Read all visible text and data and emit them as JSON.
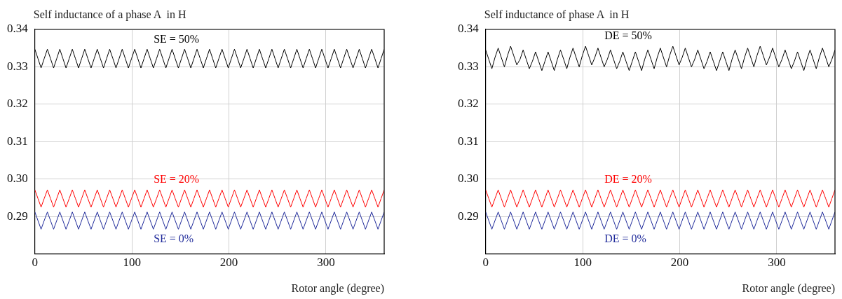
{
  "chart_data": [
    {
      "type": "line",
      "ylabel": "Self inductance of a phase A  in H",
      "xlabel": "Rotor angle (degree)",
      "xlim": [
        0,
        360
      ],
      "xticks": [
        0,
        100,
        200,
        300
      ],
      "ylim": [
        0.28,
        0.34
      ],
      "yticks": [
        0.29,
        {
          "value": 0.3,
          "label": "0.30"
        },
        0.31,
        0.32,
        0.33,
        0.34
      ],
      "grid": true,
      "legend": false,
      "marker": "none",
      "line_style": "solid",
      "x": [
        0,
        3.2,
        6.4,
        9.6,
        12.9,
        16.1,
        19.3,
        22.5,
        25.7,
        28.9,
        32.1,
        35.4,
        38.6,
        41.8,
        45,
        48.2,
        51.4,
        54.6,
        57.9,
        61.1,
        64.3,
        67.5,
        70.7,
        73.9,
        77.1,
        80.4,
        83.6,
        86.8,
        90,
        93.2,
        96.4,
        99.6,
        102.9,
        106.1,
        109.3,
        112.5,
        115.7,
        118.9,
        122.1,
        125.4,
        128.6,
        131.8,
        135,
        138.2,
        141.4,
        144.6,
        147.9,
        151.1,
        154.3,
        157.5,
        160.7,
        163.9,
        167.1,
        170.4,
        173.6,
        176.8,
        180,
        183.2,
        186.4,
        189.6,
        192.9,
        196.1,
        199.3,
        202.5,
        205.7,
        208.9,
        212.1,
        215.4,
        218.6,
        221.8,
        225,
        228.2,
        231.4,
        234.6,
        237.9,
        241.1,
        244.3,
        247.5,
        250.7,
        253.9,
        257.1,
        260.4,
        263.6,
        266.8,
        270,
        273.2,
        276.4,
        279.6,
        282.9,
        286.1,
        289.3,
        292.5,
        295.7,
        298.9,
        302.1,
        305.4,
        308.6,
        311.8,
        315,
        318.2,
        321.4,
        324.6,
        327.9,
        331.1,
        334.3,
        337.5,
        340.7,
        343.9,
        347.1,
        350.4,
        353.6,
        356.8,
        360
      ],
      "series": [
        {
          "name": "SE = 50%",
          "color": "#000000",
          "values": [
            0.3347,
            0.3322,
            0.3297,
            0.3322,
            0.3347,
            0.3322,
            0.3297,
            0.3322,
            0.3347,
            0.3322,
            0.3297,
            0.3322,
            0.3347,
            0.3322,
            0.3297,
            0.3322,
            0.3347,
            0.3322,
            0.3297,
            0.3322,
            0.3347,
            0.3322,
            0.3297,
            0.3322,
            0.3347,
            0.3322,
            0.3297,
            0.3322,
            0.3347,
            0.3322,
            0.3297,
            0.3322,
            0.3347,
            0.3322,
            0.3297,
            0.3322,
            0.3347,
            0.3322,
            0.3297,
            0.3322,
            0.3347,
            0.3322,
            0.3297,
            0.3322,
            0.3347,
            0.3322,
            0.3297,
            0.3322,
            0.3347,
            0.3322,
            0.3297,
            0.3322,
            0.3347,
            0.3322,
            0.3297,
            0.3322,
            0.3347,
            0.3322,
            0.3297,
            0.3322,
            0.3347,
            0.3322,
            0.3297,
            0.3322,
            0.3347,
            0.3322,
            0.3297,
            0.3322,
            0.3347,
            0.3322,
            0.3297,
            0.3322,
            0.3347,
            0.3322,
            0.3297,
            0.3322,
            0.3347,
            0.3322,
            0.3297,
            0.3322,
            0.3347,
            0.3322,
            0.3297,
            0.3322,
            0.3347,
            0.3322,
            0.3297,
            0.3322,
            0.3347,
            0.3322,
            0.3297,
            0.3322,
            0.3347,
            0.3322,
            0.3297,
            0.3322,
            0.3347,
            0.3322,
            0.3297,
            0.3322,
            0.3347,
            0.3322,
            0.3297,
            0.3322,
            0.3347,
            0.3322,
            0.3297,
            0.3322,
            0.3347,
            0.3322,
            0.3297,
            0.3322,
            0.3347
          ]
        },
        {
          "name": "SE = 20%",
          "color": "#ff0000",
          "values": [
            0.2971,
            0.2948,
            0.2925,
            0.2948,
            0.2971,
            0.2948,
            0.2925,
            0.2948,
            0.2971,
            0.2948,
            0.2925,
            0.2948,
            0.2971,
            0.2948,
            0.2925,
            0.2948,
            0.2971,
            0.2948,
            0.2925,
            0.2948,
            0.2971,
            0.2948,
            0.2925,
            0.2948,
            0.2971,
            0.2948,
            0.2925,
            0.2948,
            0.2971,
            0.2948,
            0.2925,
            0.2948,
            0.2971,
            0.2948,
            0.2925,
            0.2948,
            0.2971,
            0.2948,
            0.2925,
            0.2948,
            0.2971,
            0.2948,
            0.2925,
            0.2948,
            0.2971,
            0.2948,
            0.2925,
            0.2948,
            0.2971,
            0.2948,
            0.2925,
            0.2948,
            0.2971,
            0.2948,
            0.2925,
            0.2948,
            0.2971,
            0.2948,
            0.2925,
            0.2948,
            0.2971,
            0.2948,
            0.2925,
            0.2948,
            0.2971,
            0.2948,
            0.2925,
            0.2948,
            0.2971,
            0.2948,
            0.2925,
            0.2948,
            0.2971,
            0.2948,
            0.2925,
            0.2948,
            0.2971,
            0.2948,
            0.2925,
            0.2948,
            0.2971,
            0.2948,
            0.2925,
            0.2948,
            0.2971,
            0.2948,
            0.2925,
            0.2948,
            0.2971,
            0.2948,
            0.2925,
            0.2948,
            0.2971,
            0.2948,
            0.2925,
            0.2948,
            0.2971,
            0.2948,
            0.2925,
            0.2948,
            0.2971,
            0.2948,
            0.2925,
            0.2948,
            0.2971,
            0.2948,
            0.2925,
            0.2948,
            0.2971,
            0.2948,
            0.2925,
            0.2948,
            0.2971
          ]
        },
        {
          "name": "SE = 0%",
          "color": "#1f2a9a",
          "values": [
            0.2912,
            0.2889,
            0.2866,
            0.2889,
            0.2912,
            0.2889,
            0.2866,
            0.2889,
            0.2912,
            0.2889,
            0.2866,
            0.2889,
            0.2912,
            0.2889,
            0.2866,
            0.2889,
            0.2912,
            0.2889,
            0.2866,
            0.2889,
            0.2912,
            0.2889,
            0.2866,
            0.2889,
            0.2912,
            0.2889,
            0.2866,
            0.2889,
            0.2912,
            0.2889,
            0.2866,
            0.2889,
            0.2912,
            0.2889,
            0.2866,
            0.2889,
            0.2912,
            0.2889,
            0.2866,
            0.2889,
            0.2912,
            0.2889,
            0.2866,
            0.2889,
            0.2912,
            0.2889,
            0.2866,
            0.2889,
            0.2912,
            0.2889,
            0.2866,
            0.2889,
            0.2912,
            0.2889,
            0.2866,
            0.2889,
            0.2912,
            0.2889,
            0.2866,
            0.2889,
            0.2912,
            0.2889,
            0.2866,
            0.2889,
            0.2912,
            0.2889,
            0.2866,
            0.2889,
            0.2912,
            0.2889,
            0.2866,
            0.2889,
            0.2912,
            0.2889,
            0.2866,
            0.2889,
            0.2912,
            0.2889,
            0.2866,
            0.2889,
            0.2912,
            0.2889,
            0.2866,
            0.2889,
            0.2912,
            0.2889,
            0.2866,
            0.2889,
            0.2912,
            0.2889,
            0.2866,
            0.2889,
            0.2912,
            0.2889,
            0.2866,
            0.2889,
            0.2912,
            0.2889,
            0.2866,
            0.2889,
            0.2912,
            0.2889,
            0.2866,
            0.2889,
            0.2912,
            0.2889,
            0.2866,
            0.2889,
            0.2912,
            0.2889,
            0.2866,
            0.2889,
            0.2912
          ]
        }
      ]
    },
    {
      "type": "line",
      "ylabel": "Self inductance of phase A  in H",
      "xlabel": "Rotor angle (degree)",
      "xlim": [
        0,
        360
      ],
      "xticks": [
        0,
        100,
        200,
        300
      ],
      "ylim": [
        0.28,
        0.34
      ],
      "yticks": [
        0.29,
        {
          "value": 0.3,
          "label": "0.30"
        },
        0.31,
        0.32,
        0.33,
        0.34
      ],
      "grid": true,
      "legend": false,
      "marker": "none",
      "line_style": "solid",
      "x": [
        0,
        3.2,
        6.4,
        9.6,
        12.9,
        16.1,
        19.3,
        22.5,
        25.7,
        28.9,
        32.1,
        35.4,
        38.6,
        41.8,
        45,
        48.2,
        51.4,
        54.6,
        57.9,
        61.1,
        64.3,
        67.5,
        70.7,
        73.9,
        77.1,
        80.4,
        83.6,
        86.8,
        90,
        93.2,
        96.4,
        99.6,
        102.9,
        106.1,
        109.3,
        112.5,
        115.7,
        118.9,
        122.1,
        125.4,
        128.6,
        131.8,
        135,
        138.2,
        141.4,
        144.6,
        147.9,
        151.1,
        154.3,
        157.5,
        160.7,
        163.9,
        167.1,
        170.4,
        173.6,
        176.8,
        180,
        183.2,
        186.4,
        189.6,
        192.9,
        196.1,
        199.3,
        202.5,
        205.7,
        208.9,
        212.1,
        215.4,
        218.6,
        221.8,
        225,
        228.2,
        231.4,
        234.6,
        237.9,
        241.1,
        244.3,
        247.5,
        250.7,
        253.9,
        257.1,
        260.4,
        263.6,
        266.8,
        270,
        273.2,
        276.4,
        279.6,
        282.9,
        286.1,
        289.3,
        292.5,
        295.7,
        298.9,
        302.1,
        305.4,
        308.6,
        311.8,
        315,
        318.2,
        321.4,
        324.6,
        327.9,
        331.1,
        334.3,
        337.5,
        340.7,
        343.9,
        347.1,
        350.4,
        353.6,
        356.8,
        360
      ],
      "series": [
        {
          "name": "DE = 50%",
          "color": "#000000",
          "values": [
            0.3345,
            0.332,
            0.3295,
            0.3325,
            0.335,
            0.3325,
            0.33,
            0.333,
            0.3355,
            0.333,
            0.3305,
            0.332,
            0.3345,
            0.332,
            0.3295,
            0.3315,
            0.334,
            0.3315,
            0.329,
            0.3315,
            0.334,
            0.3315,
            0.329,
            0.332,
            0.3345,
            0.332,
            0.3295,
            0.3325,
            0.335,
            0.3325,
            0.33,
            0.333,
            0.3355,
            0.333,
            0.3305,
            0.3325,
            0.335,
            0.3325,
            0.33,
            0.332,
            0.3345,
            0.332,
            0.3295,
            0.3315,
            0.334,
            0.3315,
            0.329,
            0.3315,
            0.334,
            0.3315,
            0.329,
            0.332,
            0.3345,
            0.332,
            0.3295,
            0.3325,
            0.335,
            0.3325,
            0.33,
            0.333,
            0.3355,
            0.333,
            0.3305,
            0.3325,
            0.335,
            0.3325,
            0.33,
            0.332,
            0.3345,
            0.332,
            0.3295,
            0.3315,
            0.334,
            0.3315,
            0.329,
            0.3315,
            0.334,
            0.3315,
            0.329,
            0.332,
            0.3345,
            0.332,
            0.3295,
            0.3325,
            0.335,
            0.3325,
            0.33,
            0.333,
            0.3355,
            0.333,
            0.3305,
            0.3325,
            0.335,
            0.3325,
            0.33,
            0.332,
            0.3345,
            0.332,
            0.3295,
            0.3315,
            0.334,
            0.3315,
            0.329,
            0.332,
            0.3345,
            0.332,
            0.3295,
            0.3325,
            0.335,
            0.3325,
            0.33,
            0.332,
            0.3345
          ]
        },
        {
          "name": "DE = 20%",
          "color": "#ff0000",
          "values": [
            0.2971,
            0.2948,
            0.2925,
            0.2948,
            0.2971,
            0.2948,
            0.2925,
            0.2948,
            0.2971,
            0.2948,
            0.2925,
            0.2948,
            0.2971,
            0.2948,
            0.2925,
            0.2948,
            0.2971,
            0.2948,
            0.2925,
            0.2948,
            0.2971,
            0.2948,
            0.2925,
            0.2948,
            0.2971,
            0.2948,
            0.2925,
            0.2948,
            0.2971,
            0.2948,
            0.2925,
            0.2948,
            0.2971,
            0.2948,
            0.2925,
            0.2948,
            0.2971,
            0.2948,
            0.2925,
            0.2948,
            0.2971,
            0.2948,
            0.2925,
            0.2948,
            0.2971,
            0.2948,
            0.2925,
            0.2948,
            0.2971,
            0.2948,
            0.2925,
            0.2948,
            0.2971,
            0.2948,
            0.2925,
            0.2948,
            0.2971,
            0.2948,
            0.2925,
            0.2948,
            0.2971,
            0.2948,
            0.2925,
            0.2948,
            0.2971,
            0.2948,
            0.2925,
            0.2948,
            0.2971,
            0.2948,
            0.2925,
            0.2948,
            0.2971,
            0.2948,
            0.2925,
            0.2948,
            0.2971,
            0.2948,
            0.2925,
            0.2948,
            0.2971,
            0.2948,
            0.2925,
            0.2948,
            0.2971,
            0.2948,
            0.2925,
            0.2948,
            0.2971,
            0.2948,
            0.2925,
            0.2948,
            0.2971,
            0.2948,
            0.2925,
            0.2948,
            0.2971,
            0.2948,
            0.2925,
            0.2948,
            0.2971,
            0.2948,
            0.2925,
            0.2948,
            0.2971,
            0.2948,
            0.2925,
            0.2948,
            0.2971,
            0.2948,
            0.2925,
            0.2948,
            0.2971
          ]
        },
        {
          "name": "DE = 0%",
          "color": "#1f2a9a",
          "values": [
            0.2912,
            0.2889,
            0.2866,
            0.2889,
            0.2912,
            0.2889,
            0.2866,
            0.2889,
            0.2912,
            0.2889,
            0.2866,
            0.2889,
            0.2912,
            0.2889,
            0.2866,
            0.2889,
            0.2912,
            0.2889,
            0.2866,
            0.2889,
            0.2912,
            0.2889,
            0.2866,
            0.2889,
            0.2912,
            0.2889,
            0.2866,
            0.2889,
            0.2912,
            0.2889,
            0.2866,
            0.2889,
            0.2912,
            0.2889,
            0.2866,
            0.2889,
            0.2912,
            0.2889,
            0.2866,
            0.2889,
            0.2912,
            0.2889,
            0.2866,
            0.2889,
            0.2912,
            0.2889,
            0.2866,
            0.2889,
            0.2912,
            0.2889,
            0.2866,
            0.2889,
            0.2912,
            0.2889,
            0.2866,
            0.2889,
            0.2912,
            0.2889,
            0.2866,
            0.2889,
            0.2912,
            0.2889,
            0.2866,
            0.2889,
            0.2912,
            0.2889,
            0.2866,
            0.2889,
            0.2912,
            0.2889,
            0.2866,
            0.2889,
            0.2912,
            0.2889,
            0.2866,
            0.2889,
            0.2912,
            0.2889,
            0.2866,
            0.2889,
            0.2912,
            0.2889,
            0.2866,
            0.2889,
            0.2912,
            0.2889,
            0.2866,
            0.2889,
            0.2912,
            0.2889,
            0.2866,
            0.2889,
            0.2912,
            0.2889,
            0.2866,
            0.2889,
            0.2912,
            0.2889,
            0.2866,
            0.2889,
            0.2912,
            0.2889,
            0.2866,
            0.2889,
            0.2912,
            0.2889,
            0.2866,
            0.2889,
            0.2912,
            0.2889,
            0.2866,
            0.2889,
            0.2912
          ]
        }
      ]
    }
  ]
}
